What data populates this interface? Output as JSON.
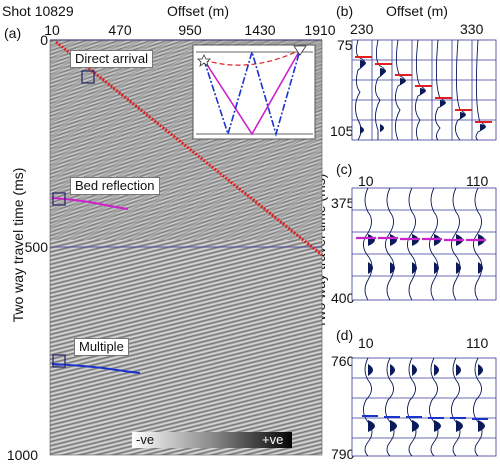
{
  "panel_a": {
    "letter": "(a)",
    "shot_label": "Shot 10829",
    "x_title": "Offset (m)",
    "x_ticks": [
      "10",
      "470",
      "950",
      "1430",
      "1910"
    ],
    "y_title": "Two way travel time (ms)",
    "y_ticks": [
      "0",
      "500",
      "1000"
    ],
    "annotations": {
      "direct": "Direct arrival",
      "bed": "Bed reflection",
      "multiple": "Multiple"
    },
    "colorbar": {
      "neg": "-ve",
      "pos": "+ve"
    }
  },
  "panel_b": {
    "letter": "(b)",
    "x_title": "Offset (m)",
    "x_left": "230",
    "x_right": "330",
    "y_top": "75",
    "y_bottom": "105"
  },
  "panel_c": {
    "letter": "(c)",
    "y_title": "Two way travel time (ms)",
    "x_left": "10",
    "x_right": "110",
    "y_top": "375",
    "y_bottom": "400"
  },
  "panel_d": {
    "letter": "(d)",
    "x_left": "10",
    "x_right": "110",
    "y_top": "760",
    "y_bottom": "790"
  },
  "colors": {
    "direct_pick": "#e02020",
    "bed_pick": "#cc22cc",
    "multiple_pick": "#1a33cc",
    "wiggle_fill": "#0a1a5a",
    "grid": "#3a3a9a"
  }
}
